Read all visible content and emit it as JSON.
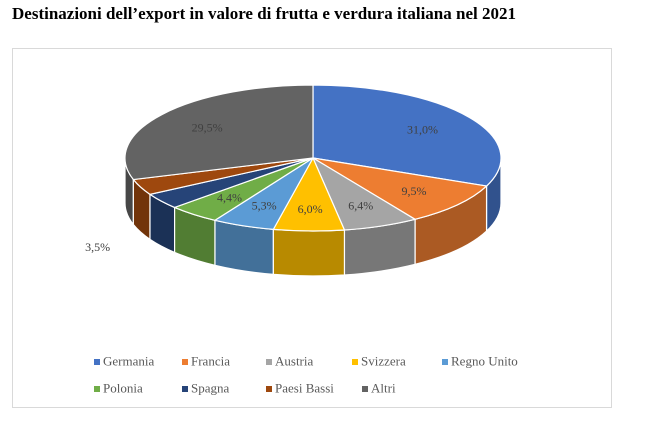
{
  "chart_data": {
    "type": "pie",
    "title": "Destinazioni dell’export in valore di frutta e verdura italiana nel 2021",
    "categories": [
      "Germania",
      "Francia",
      "Austria",
      "Svizzera",
      "Regno Unito",
      "Polonia",
      "Spagna",
      "Paesi Bassi",
      "Altri"
    ],
    "values": [
      31.0,
      9.5,
      6.4,
      6.0,
      5.3,
      4.4,
      3.5,
      3.5,
      29.5
    ],
    "labels": [
      "31,0%",
      "9,5%",
      "6,4%",
      "6,0%",
      "5,3%",
      "4,4%",
      "3,5%",
      "",
      "29,5%"
    ],
    "colors": [
      "#4472c4",
      "#ed7d31",
      "#a5a5a5",
      "#ffc000",
      "#5b9bd5",
      "#70ad47",
      "#264478",
      "#9e480e",
      "#636363"
    ],
    "legend_position": "bottom",
    "style": "3d"
  }
}
